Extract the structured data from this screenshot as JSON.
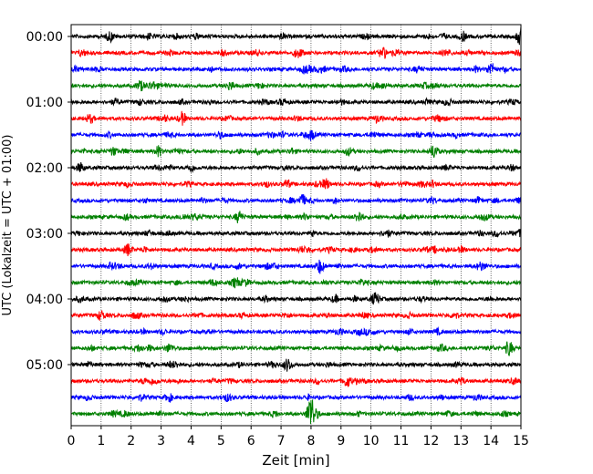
{
  "chart_data": {
    "type": "line",
    "title": "",
    "xlabel": "Zeit  [min]",
    "ylabel": "UTC (Lokalzeit = UTC + 01:00)",
    "xlim": [
      0,
      15
    ],
    "xticks": [
      "0",
      "1",
      "2",
      "3",
      "4",
      "5",
      "6",
      "7",
      "8",
      "9",
      "10",
      "11",
      "12",
      "13",
      "14",
      "15"
    ],
    "y_tick_labels": [
      "00:00",
      "01:00",
      "02:00",
      "03:00",
      "04:00",
      "05:00"
    ],
    "rows_per_hour": 4,
    "row_count": 24,
    "vertical_grid": true,
    "color_cycle": [
      "#000000",
      "#ff0000",
      "#0000ff",
      "#008000"
    ],
    "events": [
      {
        "row": 0,
        "minute": 1.3,
        "amp": 0.5
      },
      {
        "row": 0,
        "minute": 15.0,
        "amp": 0.7
      },
      {
        "row": 1,
        "minute": 10.4,
        "amp": 0.6
      },
      {
        "row": 2,
        "minute": 14.0,
        "amp": 0.7
      },
      {
        "row": 3,
        "minute": 2.3,
        "amp": 0.5
      },
      {
        "row": 5,
        "minute": 3.7,
        "amp": 0.5
      },
      {
        "row": 6,
        "minute": 8.0,
        "amp": 0.5
      },
      {
        "row": 7,
        "minute": 2.9,
        "amp": 0.5
      },
      {
        "row": 7,
        "minute": 12.1,
        "amp": 0.7
      },
      {
        "row": 9,
        "minute": 8.5,
        "amp": 0.5
      },
      {
        "row": 10,
        "minute": 7.7,
        "amp": 0.6
      },
      {
        "row": 11,
        "minute": 5.6,
        "amp": 0.6
      },
      {
        "row": 11,
        "minute": 9.6,
        "amp": 0.6
      },
      {
        "row": 13,
        "minute": 1.9,
        "amp": 0.6
      },
      {
        "row": 14,
        "minute": 8.3,
        "amp": 0.7
      },
      {
        "row": 16,
        "minute": 10.1,
        "amp": 0.5
      },
      {
        "row": 17,
        "minute": 1.0,
        "amp": 0.5
      },
      {
        "row": 19,
        "minute": 14.6,
        "amp": 0.6
      },
      {
        "row": 20,
        "minute": 7.2,
        "amp": 0.5
      },
      {
        "row": 21,
        "minute": 9.2,
        "amp": 0.6
      },
      {
        "row": 23,
        "minute": 8.0,
        "amp": 1.8
      }
    ]
  }
}
